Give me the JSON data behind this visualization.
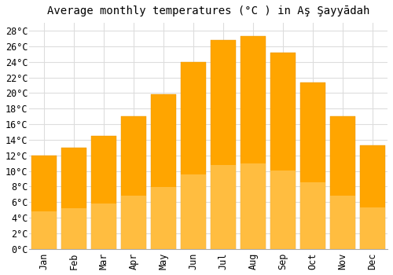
{
  "title": "Average monthly temperatures (°C ) in Aş Şayyādah",
  "months": [
    "Jan",
    "Feb",
    "Mar",
    "Apr",
    "May",
    "Jun",
    "Jul",
    "Aug",
    "Sep",
    "Oct",
    "Nov",
    "Dec"
  ],
  "values": [
    12,
    13,
    14.5,
    17,
    19.8,
    24,
    26.8,
    27.3,
    25.2,
    21.3,
    17,
    13.3
  ],
  "bar_color_bottom": "#FFB732",
  "bar_color_top": "#FFA500",
  "bar_edge_color": "#E69500",
  "ylim": [
    0,
    29
  ],
  "yticks": [
    0,
    2,
    4,
    6,
    8,
    10,
    12,
    14,
    16,
    18,
    20,
    22,
    24,
    26,
    28
  ],
  "background_color": "#ffffff",
  "grid_color": "#dddddd",
  "title_fontsize": 10,
  "tick_fontsize": 8.5
}
